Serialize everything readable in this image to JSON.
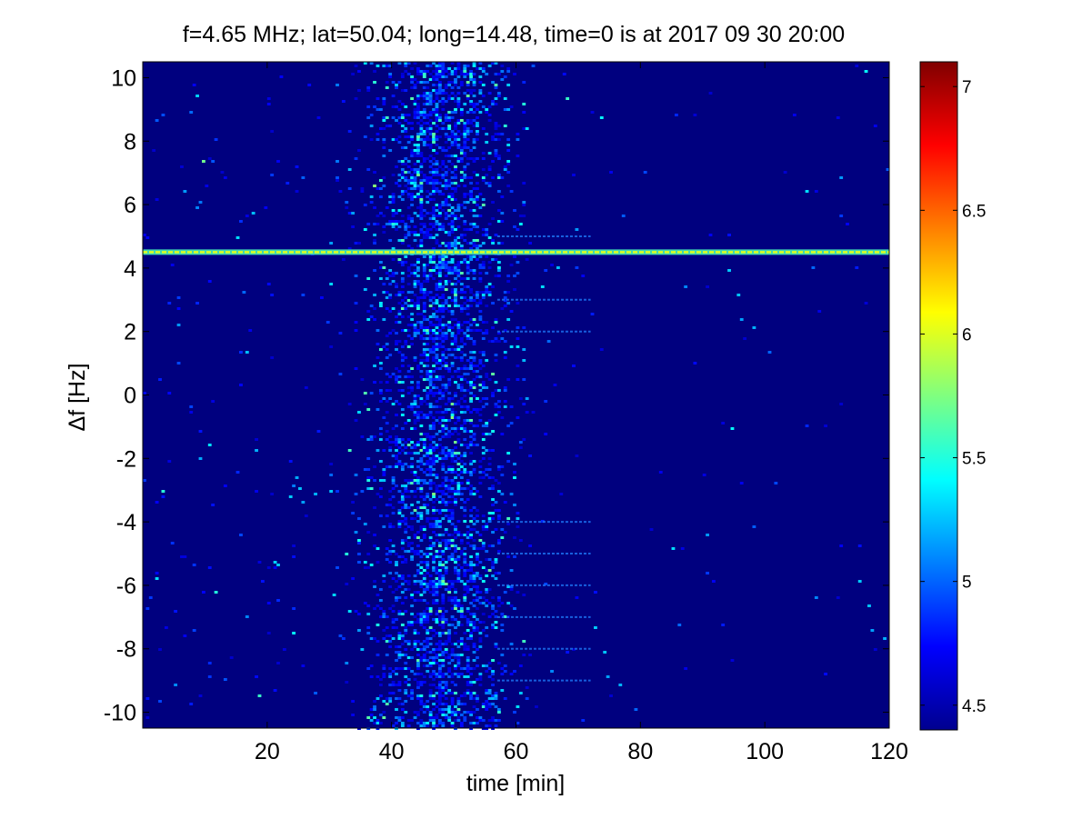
{
  "chart_data": {
    "type": "heatmap",
    "title": "f=4.65 MHz;  lat=50.04; long=14.48, time=0 is at 2017 09 30 20:00",
    "xlabel": "time [min]",
    "ylabel": "Δf [Hz]",
    "xlim": [
      0,
      120
    ],
    "ylim": [
      -10.5,
      10.5
    ],
    "xticks": [
      20,
      40,
      60,
      80,
      100,
      120
    ],
    "xtick_labels": [
      "20",
      "40",
      "60",
      "80",
      "100",
      "120"
    ],
    "yticks": [
      10,
      8,
      6,
      4,
      2,
      0,
      -2,
      -4,
      -6,
      -8,
      -10
    ],
    "ytick_labels": [
      "10",
      "8",
      "6",
      "4",
      "2",
      "0",
      "-2",
      "-4",
      "-6",
      "-8",
      "-10"
    ],
    "colormap": "jet",
    "background_color": "#00007f",
    "clim": [
      4.4,
      7.1
    ],
    "colorbar_ticks": [
      7,
      6.5,
      6,
      5.5,
      5,
      4.5
    ],
    "colorbar_tick_labels": [
      "7",
      "6.5",
      "6",
      "5.5",
      "5",
      "4.5"
    ],
    "features": [
      {
        "kind": "horizontal_line",
        "y": 4.5,
        "x_range": [
          0,
          120
        ],
        "value": 6.0
      },
      {
        "kind": "noise_band",
        "x_range": [
          30,
          62
        ],
        "peak_x": 48,
        "y_range": [
          -10.5,
          10.5
        ],
        "value_range": [
          4.6,
          5.8
        ]
      },
      {
        "kind": "discrete_lines",
        "x_range": [
          57,
          72
        ],
        "y_values": [
          5,
          3,
          2,
          -4,
          -5,
          -6,
          -7,
          -8,
          -9
        ]
      }
    ]
  }
}
